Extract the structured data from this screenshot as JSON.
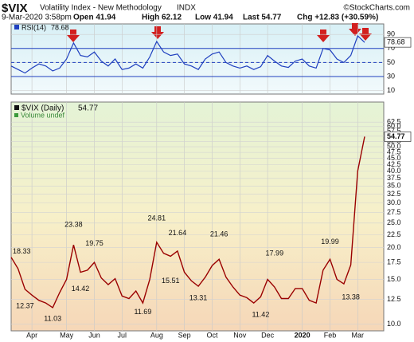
{
  "header": {
    "symbol": "$VIX",
    "name": "Volatility Index - New Methodology",
    "exchange": "INDX",
    "source": "©StockCharts.com",
    "quote": [
      "9-Mar-2020 3:58pm",
      "Open 41.94",
      "High 62.12",
      "Low 41.94",
      "Last 54.77",
      "Chg +12.83 (+30.59%)"
    ]
  },
  "chart_data": [
    {
      "type": "line",
      "name": "RSI(14)",
      "color": "#1f3fbf",
      "values": [
        45,
        40,
        35,
        42,
        48,
        45,
        38,
        42,
        55,
        78,
        60,
        58,
        65,
        52,
        45,
        55,
        40,
        42,
        48,
        42,
        58,
        80,
        65,
        60,
        62,
        48,
        45,
        40,
        55,
        62,
        65,
        50,
        45,
        42,
        45,
        40,
        44,
        60,
        52,
        45,
        43,
        52,
        55,
        45,
        42,
        70,
        68,
        55,
        50,
        60,
        88,
        78.68
      ],
      "ylim": [
        5,
        105
      ],
      "yticks": [
        10,
        30,
        50,
        70,
        90
      ],
      "reference_lines": [
        30,
        70
      ],
      "center_line": 50,
      "grid": true
    },
    {
      "type": "price",
      "log_scale": true,
      "grid": true,
      "series": [
        {
          "name": "$VIX (Daily)",
          "color": "#9a0000",
          "values": [
            18.33,
            16.5,
            13.7,
            13.0,
            12.4,
            12.1,
            11.6,
            13.3,
            15.0,
            20.5,
            16.0,
            16.3,
            17.5,
            15.2,
            14.3,
            15.1,
            12.9,
            12.6,
            13.5,
            12.1,
            15.0,
            21.0,
            19.0,
            18.5,
            19.4,
            16.0,
            14.8,
            14.1,
            15.3,
            17.0,
            18.0,
            15.3,
            14.0,
            13.0,
            12.7,
            12.1,
            12.8,
            15.0,
            14.0,
            12.6,
            12.6,
            13.8,
            13.8,
            12.4,
            12.1,
            16.3,
            18.0,
            15.0,
            14.4,
            17.1,
            40.1,
            54.77
          ]
        }
      ],
      "extremes": [
        18.33,
        null,
        12.37,
        null,
        null,
        null,
        11.03,
        null,
        null,
        23.38,
        14.42,
        null,
        19.75,
        null,
        null,
        null,
        null,
        null,
        null,
        11.69,
        null,
        24.81,
        null,
        15.51,
        21.64,
        null,
        null,
        13.31,
        null,
        null,
        21.46,
        null,
        null,
        null,
        null,
        null,
        11.42,
        null,
        17.99,
        null,
        null,
        null,
        null,
        null,
        null,
        null,
        19.99,
        null,
        null,
        13.38,
        null,
        null
      ],
      "categories": [
        null,
        null,
        null,
        "Apr",
        null,
        null,
        null,
        null,
        "May",
        null,
        null,
        null,
        "Jun",
        null,
        null,
        null,
        "Jul",
        null,
        null,
        null,
        null,
        "Aug",
        null,
        null,
        null,
        "Sep",
        null,
        null,
        null,
        "Oct",
        null,
        null,
        null,
        "Nov",
        null,
        null,
        null,
        "Dec",
        null,
        null,
        null,
        null,
        "2020",
        null,
        null,
        null,
        "Feb",
        null,
        null,
        null,
        "Mar",
        null
      ],
      "volume_note": "Volume undef",
      "ylim": [
        9.4,
        75
      ],
      "yticks": [
        {
          "value": 10,
          "label": "10.0"
        },
        {
          "value": 12.5,
          "label": "12.5"
        },
        {
          "value": 15,
          "label": "15.0"
        },
        {
          "value": 17.5,
          "label": "17.5"
        },
        {
          "value": 20,
          "label": "20.0"
        },
        {
          "value": 22.5,
          "label": "22.5"
        },
        {
          "value": 25,
          "label": "25.0"
        },
        {
          "value": 27.5,
          "label": "27.5"
        },
        {
          "value": 30,
          "label": "30.0"
        },
        {
          "value": 32.5,
          "label": "32.5"
        },
        {
          "value": 35,
          "label": "35.0"
        },
        {
          "value": 37.5,
          "label": "37.5"
        },
        {
          "value": 40,
          "label": "40.0"
        },
        {
          "value": 42.5,
          "label": "42.5"
        },
        {
          "value": 45,
          "label": "45.0"
        },
        {
          "value": 47.5,
          "label": "47.5"
        },
        {
          "value": 50,
          "label": "50.0"
        },
        {
          "value": 52.5,
          "label": "52.5"
        },
        {
          "value": 55,
          "label": "55.0"
        },
        {
          "value": 57.5,
          "label": "57.5"
        },
        {
          "value": 60,
          "label": "60.0"
        },
        {
          "value": 62.5,
          "label": "62.5"
        }
      ]
    }
  ]
}
